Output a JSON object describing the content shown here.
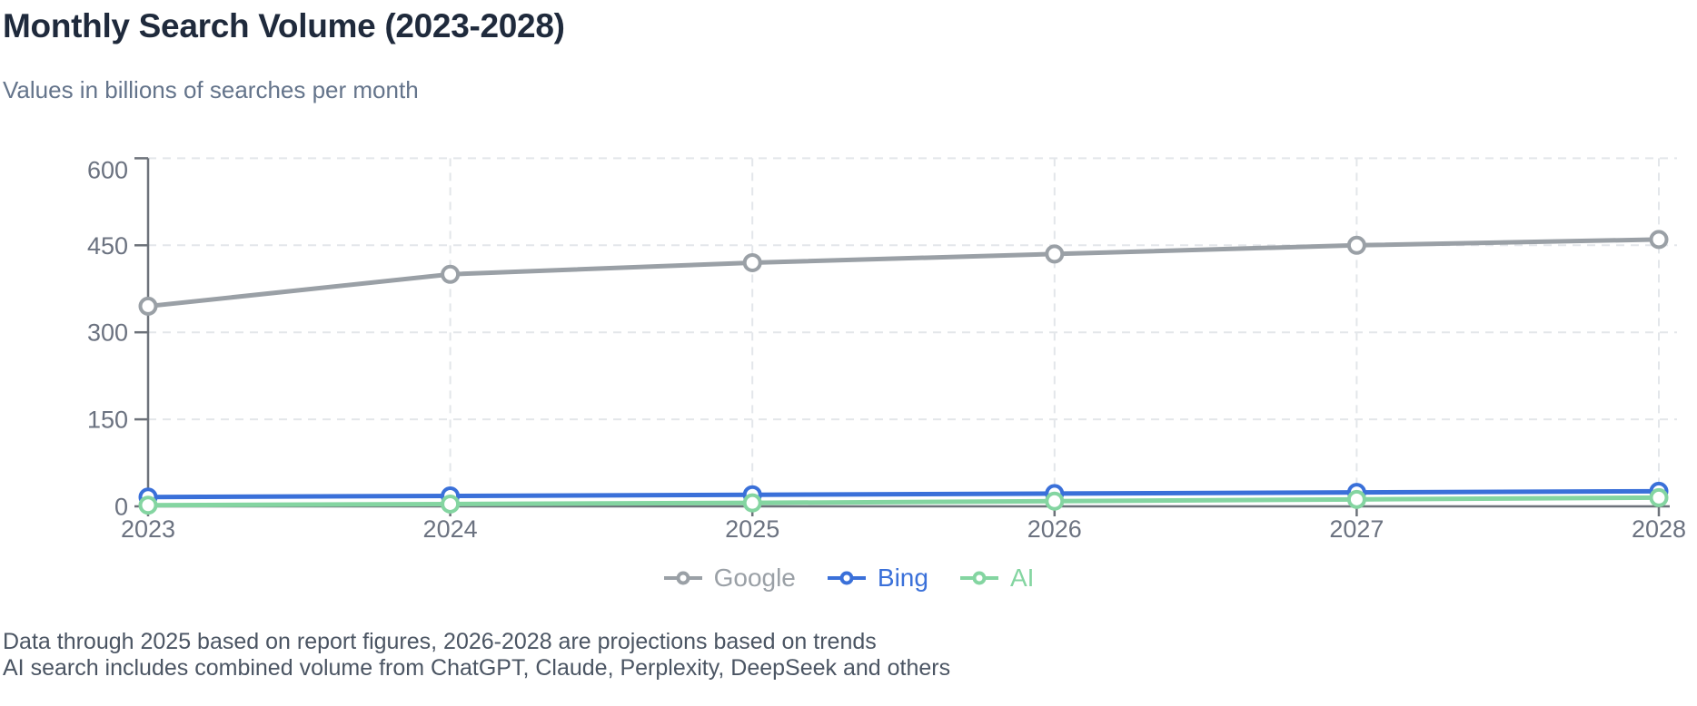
{
  "header": {
    "title": "Monthly Search Volume (2023-2028)",
    "subtitle": "Values in billions of searches per month"
  },
  "chart_data": {
    "type": "line",
    "title": "Monthly Search Volume (2023-2028)",
    "subtitle": "Values in billions of searches per month",
    "units": "billions of searches per month",
    "categories": [
      "2023",
      "2024",
      "2025",
      "2026",
      "2027",
      "2028"
    ],
    "series": [
      {
        "name": "Google",
        "color": "#9aa0a6",
        "values": [
          345,
          400,
          420,
          435,
          450,
          460
        ]
      },
      {
        "name": "Bing",
        "color": "#3a70d9",
        "values": [
          16,
          18,
          20,
          22,
          24,
          26
        ]
      },
      {
        "name": "AI",
        "color": "#84d5a1",
        "values": [
          2,
          4,
          6,
          9,
          12,
          15
        ]
      }
    ],
    "ylim": [
      0,
      600
    ],
    "yticks": [
      0,
      150,
      300,
      450,
      600
    ],
    "xlabel": "",
    "ylabel": "",
    "grid": true,
    "grid_style": "dashed",
    "legend_position": "bottom",
    "marker": "open-circle"
  },
  "footer": {
    "note1": "Data through 2025 based on report figures, 2026-2028 are projections based on trends",
    "note2": "AI search includes combined volume from ChatGPT, Claude, Perplexity, DeepSeek and others"
  },
  "colors": {
    "title_text": "#1f2a3c",
    "subtitle_text": "#64748b",
    "axis_line": "#6d727a",
    "tick_label": "#6b7280",
    "gridline": "#e3e6ea",
    "footnote_text": "#4b5563"
  }
}
